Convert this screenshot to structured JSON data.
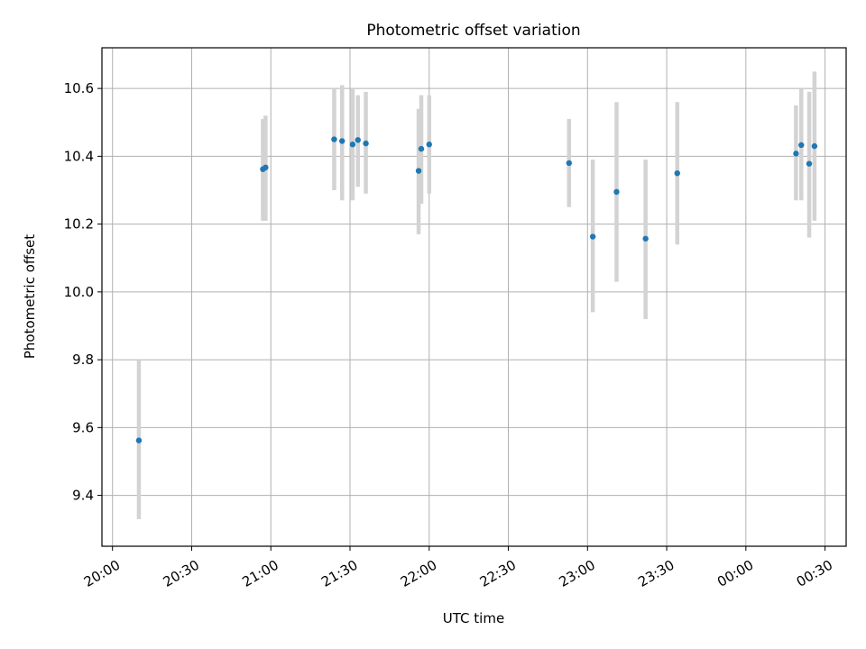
{
  "chart_data": {
    "type": "scatter",
    "title": "Photometric offset variation",
    "xlabel": "UTC time",
    "ylabel": "Photometric offset",
    "x_axis_type": "time",
    "xlim": [
      "19:56",
      "24:38"
    ],
    "ylim": [
      9.25,
      10.72
    ],
    "grid": true,
    "x_ticks": [
      {
        "label": "20:00",
        "time": "20:00"
      },
      {
        "label": "20:30",
        "time": "20:30"
      },
      {
        "label": "21:00",
        "time": "21:00"
      },
      {
        "label": "21:30",
        "time": "21:30"
      },
      {
        "label": "22:00",
        "time": "22:00"
      },
      {
        "label": "22:30",
        "time": "22:30"
      },
      {
        "label": "23:00",
        "time": "23:00"
      },
      {
        "label": "23:30",
        "time": "23:30"
      },
      {
        "label": "00:00",
        "time": "24:00"
      },
      {
        "label": "00:30",
        "time": "24:30"
      }
    ],
    "y_ticks": [
      {
        "label": "9.4",
        "value": 9.4
      },
      {
        "label": "9.6",
        "value": 9.6
      },
      {
        "label": "9.8",
        "value": 9.8
      },
      {
        "label": "10.0",
        "value": 10.0
      },
      {
        "label": "10.2",
        "value": 10.2
      },
      {
        "label": "10.4",
        "value": 10.4
      },
      {
        "label": "10.6",
        "value": 10.6
      }
    ],
    "colors": {
      "point": "#1f77b4",
      "errorbar": "#d3d3d3",
      "grid": "#b0b0b0"
    },
    "points": [
      {
        "time": "20:10",
        "y": 9.562,
        "ylow": 9.33,
        "yhigh": 9.8
      },
      {
        "time": "20:57",
        "y": 10.362,
        "ylow": 10.21,
        "yhigh": 10.51
      },
      {
        "time": "20:58",
        "y": 10.367,
        "ylow": 10.21,
        "yhigh": 10.52
      },
      {
        "time": "21:24",
        "y": 10.45,
        "ylow": 10.3,
        "yhigh": 10.6
      },
      {
        "time": "21:27",
        "y": 10.445,
        "ylow": 10.27,
        "yhigh": 10.61
      },
      {
        "time": "21:31",
        "y": 10.435,
        "ylow": 10.27,
        "yhigh": 10.6
      },
      {
        "time": "21:33",
        "y": 10.448,
        "ylow": 10.31,
        "yhigh": 10.58
      },
      {
        "time": "21:36",
        "y": 10.438,
        "ylow": 10.29,
        "yhigh": 10.59
      },
      {
        "time": "21:56",
        "y": 10.357,
        "ylow": 10.17,
        "yhigh": 10.54
      },
      {
        "time": "21:57",
        "y": 10.422,
        "ylow": 10.26,
        "yhigh": 10.58
      },
      {
        "time": "22:00",
        "y": 10.435,
        "ylow": 10.29,
        "yhigh": 10.58
      },
      {
        "time": "22:53",
        "y": 10.38,
        "ylow": 10.25,
        "yhigh": 10.51
      },
      {
        "time": "23:02",
        "y": 10.163,
        "ylow": 9.94,
        "yhigh": 10.39
      },
      {
        "time": "23:11",
        "y": 10.295,
        "ylow": 10.03,
        "yhigh": 10.56
      },
      {
        "time": "23:22",
        "y": 10.157,
        "ylow": 9.92,
        "yhigh": 10.39
      },
      {
        "time": "23:34",
        "y": 10.35,
        "ylow": 10.14,
        "yhigh": 10.56
      },
      {
        "time": "24:19",
        "y": 10.408,
        "ylow": 10.27,
        "yhigh": 10.55
      },
      {
        "time": "24:21",
        "y": 10.433,
        "ylow": 10.27,
        "yhigh": 10.6
      },
      {
        "time": "24:24",
        "y": 10.378,
        "ylow": 10.16,
        "yhigh": 10.59
      },
      {
        "time": "24:26",
        "y": 10.43,
        "ylow": 10.21,
        "yhigh": 10.65
      }
    ]
  }
}
